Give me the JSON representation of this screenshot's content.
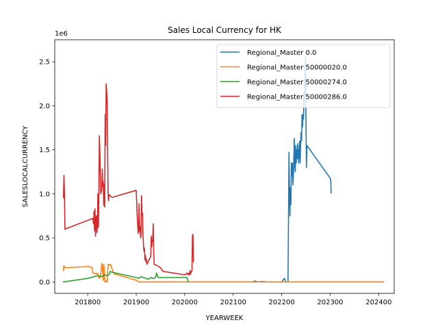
{
  "chart_data": {
    "type": "line",
    "title": "Sales Local Currency for HK",
    "xlabel": "YEARWEEK",
    "ylabel": "SALESLOCALCURRENCY",
    "y_offset_label": "1e6",
    "xlim": [
      201732,
      202432
    ],
    "ylim": [
      -130000,
      2750000
    ],
    "x_ticks": [
      201800,
      201900,
      202000,
      202100,
      202200,
      202300,
      202400
    ],
    "x_tick_labels": [
      "201800",
      "201900",
      "202000",
      "202100",
      "202200",
      "202300",
      "202400"
    ],
    "y_ticks": [
      0,
      500000,
      1000000,
      1500000,
      2000000,
      2500000
    ],
    "y_tick_labels": [
      "0.0",
      "0.5",
      "1.0",
      "1.5",
      "2.0",
      "2.5"
    ],
    "grid": false,
    "legend_position": "top-right",
    "series": [
      {
        "name": "Regional_Master 0.0",
        "color": "#1f77b4",
        "points": [
          [
            202140,
            0
          ],
          [
            202145,
            10000
          ],
          [
            202150,
            0
          ],
          [
            202160,
            5000
          ],
          [
            202170,
            0
          ],
          [
            202180,
            0
          ],
          [
            202200,
            0
          ],
          [
            202204,
            30000
          ],
          [
            202206,
            40000
          ],
          [
            202208,
            0
          ],
          [
            202210,
            0
          ],
          [
            202213,
            0
          ],
          [
            202214,
            700000
          ],
          [
            202215,
            1470000
          ],
          [
            202216,
            1050000
          ],
          [
            202217,
            750000
          ],
          [
            202218,
            1070000
          ],
          [
            202219,
            880000
          ],
          [
            202220,
            1350000
          ],
          [
            202221,
            1200000
          ],
          [
            202222,
            1350000
          ],
          [
            202223,
            1100000
          ],
          [
            202224,
            1200000
          ],
          [
            202225,
            1400000
          ],
          [
            202226,
            1630000
          ],
          [
            202227,
            1300000
          ],
          [
            202228,
            1250000
          ],
          [
            202229,
            1550000
          ],
          [
            202230,
            1350000
          ],
          [
            202231,
            1500000
          ],
          [
            202232,
            1400000
          ],
          [
            202233,
            1570000
          ],
          [
            202234,
            1450000
          ],
          [
            202235,
            1350000
          ],
          [
            202236,
            1500000
          ],
          [
            202237,
            1600000
          ],
          [
            202238,
            1350000
          ],
          [
            202239,
            1550000
          ],
          [
            202240,
            1700000
          ],
          [
            202241,
            1600000
          ],
          [
            202242,
            1900000
          ],
          [
            202243,
            1760000
          ],
          [
            202244,
            1900000
          ],
          [
            202245,
            1850000
          ],
          [
            202246,
            2150000
          ],
          [
            202247,
            2050000
          ],
          [
            202248,
            2300000
          ],
          [
            202249,
            2550000
          ],
          [
            202250,
            1900000
          ],
          [
            202251,
            1300000
          ],
          [
            202252,
            1550000
          ],
          [
            202301,
            1170000
          ],
          [
            202302,
            1010000
          ]
        ]
      },
      {
        "name": "Regional_Master 50000020.0",
        "color": "#ff7f0e",
        "points": [
          [
            201750,
            130000
          ],
          [
            201751,
            185000
          ],
          [
            201752,
            160000
          ],
          [
            201801,
            175000
          ],
          [
            201805,
            170000
          ],
          [
            201809,
            165000
          ],
          [
            201810,
            110000
          ],
          [
            201812,
            100000
          ],
          [
            201815,
            95000
          ],
          [
            201818,
            90000
          ],
          [
            201820,
            100000
          ],
          [
            201822,
            70000
          ],
          [
            201824,
            40000
          ],
          [
            201826,
            60000
          ],
          [
            201828,
            150000
          ],
          [
            201829,
            210000
          ],
          [
            201830,
            180000
          ],
          [
            201831,
            100000
          ],
          [
            201832,
            20000
          ],
          [
            201833,
            200000
          ],
          [
            201834,
            140000
          ],
          [
            201835,
            10000
          ],
          [
            201836,
            0
          ],
          [
            201838,
            10000
          ],
          [
            201840,
            0
          ],
          [
            201842,
            200000
          ],
          [
            201845,
            190000
          ],
          [
            201847,
            200000
          ],
          [
            201850,
            150000
          ],
          [
            201852,
            120000
          ],
          [
            201855,
            90000
          ],
          [
            201900,
            20000
          ],
          [
            201905,
            0
          ],
          [
            201920,
            0
          ],
          [
            201950,
            0
          ],
          [
            202000,
            0
          ],
          [
            202050,
            0
          ],
          [
            202100,
            0
          ],
          [
            202150,
            0
          ],
          [
            202200,
            0
          ],
          [
            202250,
            0
          ],
          [
            202300,
            0
          ],
          [
            202350,
            0
          ],
          [
            202410,
            0
          ]
        ]
      },
      {
        "name": "Regional_Master 50000274.0",
        "color": "#2ca02c",
        "points": [
          [
            201750,
            0
          ],
          [
            201800,
            40000
          ],
          [
            201820,
            70000
          ],
          [
            201830,
            60000
          ],
          [
            201835,
            80000
          ],
          [
            201840,
            70000
          ],
          [
            201845,
            90000
          ],
          [
            201846,
            120000
          ],
          [
            201850,
            110000
          ],
          [
            201900,
            50000
          ],
          [
            201905,
            40000
          ],
          [
            201910,
            60000
          ],
          [
            201915,
            50000
          ],
          [
            201920,
            40000
          ],
          [
            201925,
            30000
          ],
          [
            201930,
            50000
          ],
          [
            201935,
            40000
          ],
          [
            201940,
            50000
          ],
          [
            201942,
            100000
          ],
          [
            201945,
            50000
          ],
          [
            201950,
            50000
          ],
          [
            202000,
            50000
          ],
          [
            202005,
            50000
          ],
          [
            202007,
            0
          ]
        ]
      },
      {
        "name": "Regional_Master 50000286.0",
        "color": "#d62728",
        "points": [
          [
            201750,
            960000
          ],
          [
            201751,
            1210000
          ],
          [
            201752,
            1010000
          ],
          [
            201753,
            600000
          ],
          [
            201810,
            720000
          ],
          [
            201811,
            700000
          ],
          [
            201812,
            660000
          ],
          [
            201813,
            800000
          ],
          [
            201814,
            580000
          ],
          [
            201815,
            830000
          ],
          [
            201816,
            520000
          ],
          [
            201817,
            700000
          ],
          [
            201818,
            750000
          ],
          [
            201819,
            560000
          ],
          [
            201820,
            650000
          ],
          [
            201821,
            1000000
          ],
          [
            201822,
            620000
          ],
          [
            201823,
            1060000
          ],
          [
            201824,
            1660000
          ],
          [
            201825,
            1480000
          ],
          [
            201826,
            1150000
          ],
          [
            201827,
            1000000
          ],
          [
            201828,
            1030000
          ],
          [
            201829,
            1060000
          ],
          [
            201830,
            1280000
          ],
          [
            201831,
            1090000
          ],
          [
            201832,
            1140000
          ],
          [
            201833,
            870000
          ],
          [
            201834,
            1100000
          ],
          [
            201835,
            850000
          ],
          [
            201836,
            1900000
          ],
          [
            201837,
            1550000
          ],
          [
            201838,
            2250000
          ],
          [
            201839,
            2170000
          ],
          [
            201840,
            2050000
          ],
          [
            201841,
            1520000
          ],
          [
            201842,
            1000000
          ],
          [
            201843,
            920000
          ],
          [
            201844,
            990000
          ],
          [
            201850,
            960000
          ],
          [
            201900,
            1040000
          ],
          [
            201902,
            750000
          ],
          [
            201903,
            650000
          ],
          [
            201904,
            550000
          ],
          [
            201905,
            620000
          ],
          [
            201906,
            890000
          ],
          [
            201907,
            570000
          ],
          [
            201908,
            630000
          ],
          [
            201909,
            500000
          ],
          [
            201910,
            540000
          ],
          [
            201911,
            980000
          ],
          [
            201912,
            760000
          ],
          [
            201913,
            780000
          ],
          [
            201914,
            520000
          ],
          [
            201915,
            420000
          ],
          [
            201916,
            350000
          ],
          [
            201917,
            380000
          ],
          [
            201918,
            250000
          ],
          [
            201919,
            300000
          ],
          [
            201920,
            230000
          ],
          [
            201921,
            260000
          ],
          [
            201922,
            200000
          ],
          [
            201930,
            290000
          ],
          [
            201931,
            520000
          ],
          [
            201932,
            400000
          ],
          [
            201933,
            480000
          ],
          [
            201934,
            460000
          ],
          [
            201935,
            660000
          ],
          [
            201936,
            350000
          ],
          [
            201937,
            200000
          ],
          [
            201945,
            180000
          ],
          [
            201950,
            160000
          ],
          [
            201955,
            120000
          ],
          [
            202000,
            80000
          ],
          [
            202005,
            100000
          ],
          [
            202007,
            80000
          ],
          [
            202009,
            100000
          ],
          [
            202010,
            80000
          ],
          [
            202011,
            130000
          ],
          [
            202012,
            90000
          ],
          [
            202014,
            120000
          ],
          [
            202015,
            130000
          ],
          [
            202016,
            530000
          ],
          [
            202017,
            540000
          ],
          [
            202018,
            230000
          ]
        ]
      }
    ]
  }
}
